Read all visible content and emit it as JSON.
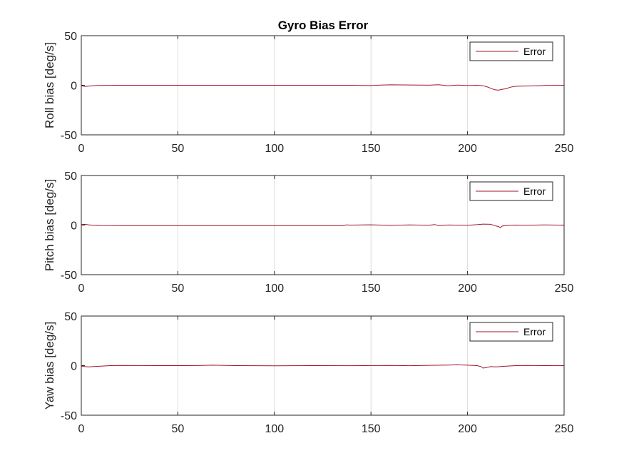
{
  "figure_title": "Gyro Bias Error",
  "chart_data": [
    {
      "type": "line",
      "ylabel": "Roll bias [deg/s]",
      "xlim": [
        0,
        250
      ],
      "ylim": [
        -50,
        50
      ],
      "xticks": [
        0,
        50,
        100,
        150,
        200,
        250
      ],
      "yticks": [
        -50,
        0,
        50
      ],
      "grid": "x-major",
      "legend": "top-right",
      "series": [
        {
          "name": "Error",
          "color": "#a2142f",
          "x": [
            0,
            2,
            4,
            6,
            10,
            20,
            40,
            60,
            80,
            100,
            120,
            140,
            150,
            155,
            160,
            170,
            180,
            185,
            190,
            195,
            200,
            205,
            208,
            210,
            212,
            214,
            216,
            218,
            220,
            222,
            225,
            230,
            240,
            250
          ],
          "y": [
            -0.5,
            -1.2,
            -0.8,
            -0.4,
            -0.2,
            0,
            0,
            0,
            0,
            0,
            0,
            0,
            -0.3,
            0.2,
            0.4,
            0.3,
            0.1,
            0.5,
            -0.5,
            0.2,
            -0.3,
            0,
            -0.5,
            -1.5,
            -3,
            -4.5,
            -5,
            -4,
            -3.5,
            -2,
            -1,
            -0.8,
            -0.2,
            0
          ]
        }
      ]
    },
    {
      "type": "line",
      "ylabel": "Pitch bias [deg/s]",
      "xlim": [
        0,
        250
      ],
      "ylim": [
        -50,
        50
      ],
      "xticks": [
        0,
        50,
        100,
        150,
        200,
        250
      ],
      "yticks": [
        -50,
        0,
        50
      ],
      "grid": "x-major",
      "legend": "top-right",
      "series": [
        {
          "name": "Error",
          "color": "#a2142f",
          "x": [
            0,
            2,
            4,
            6,
            10,
            20,
            40,
            60,
            80,
            100,
            120,
            136,
            137,
            140,
            150,
            160,
            170,
            180,
            183,
            185,
            190,
            200,
            205,
            208,
            212,
            214,
            216,
            217,
            218,
            220,
            225,
            230,
            240,
            250
          ],
          "y": [
            0.5,
            0.8,
            0.2,
            -0.2,
            -0.4,
            -0.5,
            -0.5,
            -0.5,
            -0.5,
            -0.5,
            -0.5,
            -0.5,
            0.2,
            0,
            0.3,
            -0.3,
            0.2,
            -0.2,
            0.6,
            -0.5,
            0.1,
            -0.2,
            0.4,
            1,
            0.8,
            -0.5,
            -1.5,
            -2.5,
            -1,
            -0.4,
            0,
            -0.2,
            0.2,
            -0.1
          ]
        }
      ]
    },
    {
      "type": "line",
      "ylabel": "Yaw bias [deg/s]",
      "xlim": [
        0,
        250
      ],
      "ylim": [
        -50,
        50
      ],
      "xticks": [
        0,
        50,
        100,
        150,
        200,
        250
      ],
      "yticks": [
        -50,
        0,
        50
      ],
      "grid": "x-major",
      "legend": "top-right",
      "series": [
        {
          "name": "Error",
          "color": "#a2142f",
          "x": [
            0,
            2,
            4,
            6,
            10,
            15,
            20,
            40,
            60,
            68,
            80,
            100,
            120,
            140,
            160,
            170,
            180,
            190,
            195,
            200,
            205,
            207,
            208,
            210,
            212,
            215,
            220,
            225,
            230,
            240,
            250
          ],
          "y": [
            -0.5,
            -1,
            -1.2,
            -1,
            -0.5,
            0,
            0.2,
            0,
            0.1,
            0.4,
            0,
            -0.2,
            0,
            -0.1,
            0.2,
            -0.1,
            0.3,
            0.6,
            0.8,
            0.4,
            0,
            -1,
            -2.5,
            -1.8,
            -1,
            -1.2,
            -0.6,
            0,
            0.2,
            0,
            -0.1
          ]
        }
      ]
    }
  ]
}
